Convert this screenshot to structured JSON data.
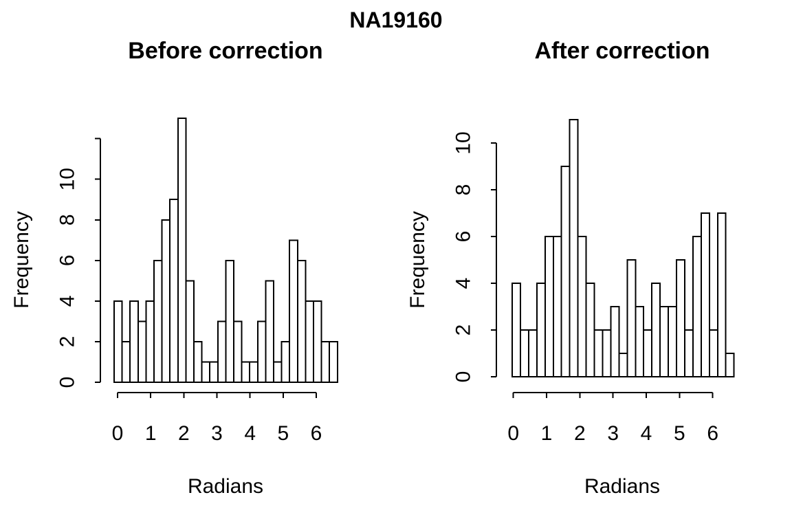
{
  "figure": {
    "title": "NA19160",
    "background": "#ffffff",
    "foreground": "#000000"
  },
  "chart_data": [
    {
      "type": "histogram",
      "title": "Before correction",
      "xlabel": "Radians",
      "ylabel": "Frequency",
      "bin_start": 0,
      "bin_width": 0.25,
      "counts": [
        4,
        2,
        4,
        3,
        4,
        6,
        8,
        9,
        13,
        5,
        2,
        1,
        1,
        3,
        6,
        3,
        1,
        1,
        3,
        5,
        1,
        2,
        7,
        6,
        4,
        4,
        2,
        2
      ],
      "x_ticks": [
        "0",
        "1",
        "2",
        "3",
        "4",
        "5",
        "6"
      ],
      "y_ticks": [
        0,
        2,
        4,
        6,
        8,
        10
      ],
      "y_axis_top": 12,
      "ylim": [
        0,
        13
      ],
      "grid": false,
      "bar_fill": "#ffffff",
      "bar_stroke": "#000000"
    },
    {
      "type": "histogram",
      "title": "After correction",
      "xlabel": "Radians",
      "ylabel": "Frequency",
      "bin_start": 0,
      "bin_width": 0.25,
      "counts": [
        4,
        2,
        2,
        4,
        6,
        6,
        9,
        11,
        6,
        4,
        2,
        2,
        3,
        1,
        5,
        3,
        2,
        4,
        3,
        3,
        5,
        2,
        6,
        7,
        2,
        7,
        1
      ],
      "x_ticks": [
        "0",
        "1",
        "2",
        "3",
        "4",
        "5",
        "6"
      ],
      "y_ticks": [
        0,
        2,
        4,
        6,
        8,
        10
      ],
      "y_axis_top": 10,
      "ylim": [
        0,
        11
      ],
      "grid": false,
      "bar_fill": "#ffffff",
      "bar_stroke": "#000000"
    }
  ]
}
